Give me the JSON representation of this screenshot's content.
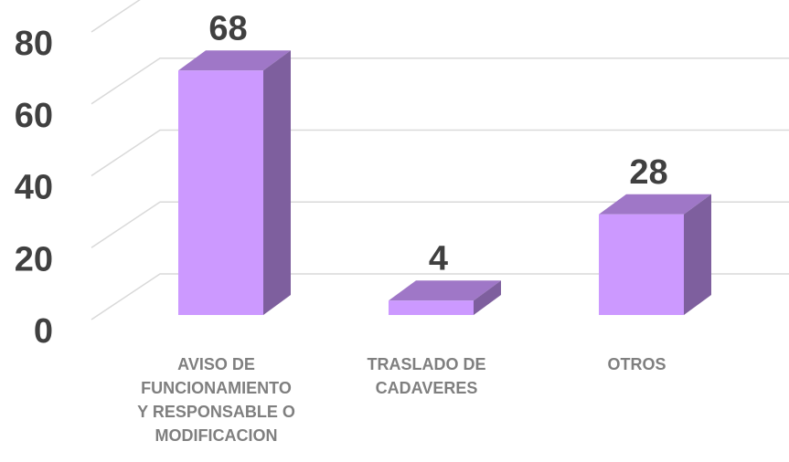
{
  "chart_data": {
    "type": "bar3d",
    "categories": [
      "AVISO DE\nFUNCIONAMIENTO\nY RESPONSABLE O\nMODIFICACION",
      "TRASLADO DE\nCADAVERES",
      "OTROS"
    ],
    "values": [
      68,
      4,
      28
    ],
    "color": "#cc99ff",
    "ylim": [
      0,
      80
    ],
    "yticks": [
      0,
      20,
      40,
      60,
      80
    ],
    "grid": true
  }
}
